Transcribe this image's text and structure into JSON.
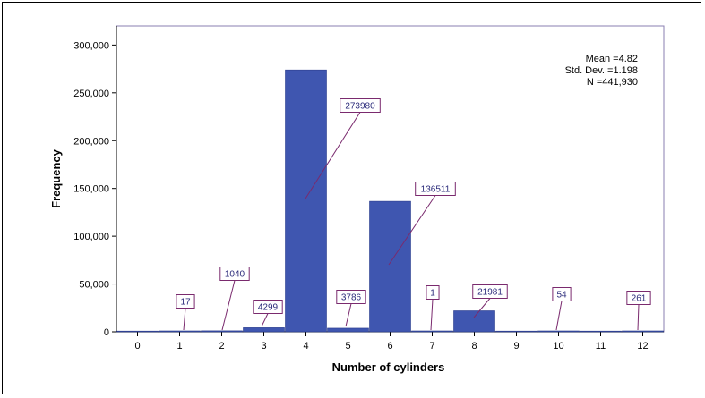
{
  "chart_data": {
    "type": "bar",
    "title": "",
    "xlabel": "Number of cylinders",
    "ylabel": "Frequency",
    "categories": [
      "0",
      "1",
      "2",
      "3",
      "4",
      "5",
      "6",
      "7",
      "8",
      "9",
      "10",
      "11",
      "12"
    ],
    "values": [
      0,
      17,
      1040,
      4299,
      273980,
      3786,
      136511,
      1,
      21981,
      0,
      54,
      0,
      261
    ],
    "data_labels": [
      "",
      "17",
      "1040",
      "4299",
      "273980",
      "3786",
      "136511",
      "1",
      "21981",
      "",
      "54",
      "",
      "261"
    ],
    "ylim": [
      0,
      320000
    ],
    "yticks": [
      0,
      50000,
      100000,
      150000,
      200000,
      250000,
      300000
    ],
    "ytick_labels": [
      "0",
      "50,000",
      "100,000",
      "150,000",
      "200,000",
      "250,000",
      "300,000"
    ],
    "stats": {
      "mean": "Mean =4.82",
      "std": "Std. Dev. =1.198",
      "n": "N =441,930"
    },
    "colors": {
      "bar": "#3f56b0",
      "bar_edge": "#2b3c8c",
      "plot_bg": "#ffffff",
      "plot_border": "#8a7fb0",
      "label_border": "#7a2a6e",
      "label_text": "#2a2a7a"
    },
    "grid": false,
    "legend": "none"
  }
}
